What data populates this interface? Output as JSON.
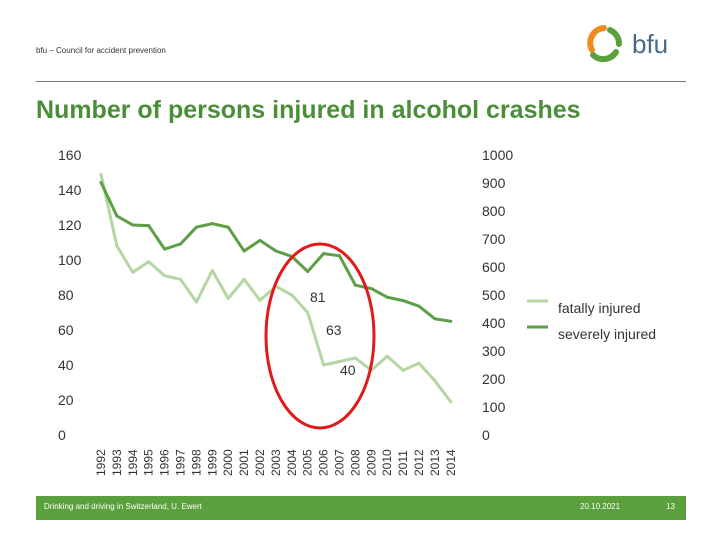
{
  "header": {
    "org": "bfu – Council for accident prevention",
    "logo_text": "bfu"
  },
  "title": "Number of persons injured in alcohol crashes",
  "footer": {
    "source": "Drinking and driving in Switzerland, U. Ewert",
    "date": "20.10.2021",
    "page": "13"
  },
  "colors": {
    "brand": "#5aa03d",
    "fatally": "#b3d6a2",
    "severely": "#5e9e45",
    "circle": "#e11b1b",
    "logo_orange": "#f08a1c"
  },
  "chart_data": {
    "type": "line",
    "x": [
      "1992",
      "1993",
      "1994",
      "1995",
      "1996",
      "1997",
      "1998",
      "1999",
      "2000",
      "2001",
      "2002",
      "2003",
      "2004",
      "2005",
      "2006",
      "2007",
      "2008",
      "2009",
      "2010",
      "2011",
      "2012",
      "2013",
      "2014"
    ],
    "series": [
      {
        "name": "fatally injured",
        "axis": "left",
        "color": "#b3d6a2",
        "values": [
          149,
          108,
          93,
          99,
          91,
          89,
          76,
          94,
          78,
          89,
          77,
          85,
          80,
          70,
          40,
          42,
          44,
          37,
          45,
          37,
          41,
          31,
          19
        ]
      },
      {
        "name": "severely injured",
        "axis": "right",
        "color": "#5e9e45",
        "values": [
          902,
          782,
          750,
          748,
          664,
          682,
          742,
          755,
          742,
          657,
          695,
          657,
          638,
          584,
          648,
          640,
          535,
          523,
          492,
          480,
          460,
          415,
          406
        ]
      }
    ],
    "y_left": {
      "ylim": [
        0,
        160
      ],
      "ticks": [
        0,
        20,
        40,
        60,
        80,
        100,
        120,
        140,
        160
      ]
    },
    "y_right": {
      "ylim": [
        0,
        1000
      ],
      "ticks": [
        0,
        100,
        200,
        300,
        400,
        500,
        600,
        700,
        800,
        900,
        1000
      ]
    },
    "annotations": [
      {
        "text": "81"
      },
      {
        "text": "63"
      },
      {
        "text": "40"
      }
    ],
    "legend_placement": "right",
    "grid": false
  }
}
